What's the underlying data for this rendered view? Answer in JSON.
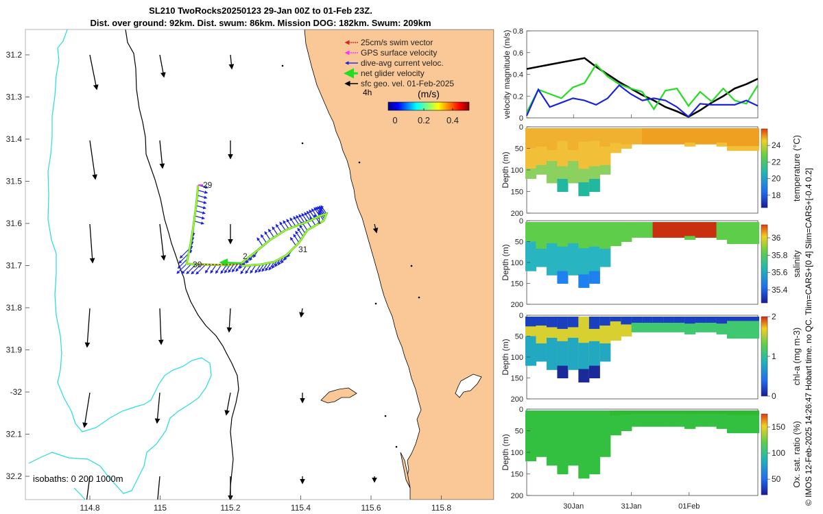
{
  "header": {
    "title_line1": "SL210 TwoRocks20250123 29-Jan 00Z to 01-Feb 23Z.",
    "title_line2": "Dist. over ground: 92km. Dist. swum: 86km. Mission DOG: 182km. Swum: 209km"
  },
  "map": {
    "lat_ticks": [
      "31.2",
      "31.3",
      "31.4",
      "31.5",
      "31.6",
      "31.7",
      "31.8",
      "31.9",
      "-32",
      "32.1",
      "32.2"
    ],
    "lon_ticks": [
      "114.8",
      "115",
      "115.2",
      "115.4",
      "115.6",
      "115.8"
    ],
    "legend": [
      {
        "label": "25cm/s swim vector",
        "color": "#dd2222"
      },
      {
        "label": "GPS surface velocity",
        "color": "#ff33ff"
      },
      {
        "label": "dive-avg current veloc.",
        "color": "#2233ee"
      },
      {
        "label": "net glider velocity",
        "color": "#22dd22"
      },
      {
        "label": "sfc geo. vel. 01-Feb-2025",
        "color": "#000000"
      }
    ],
    "legend_4h": "4h",
    "colorbar_title": "(m/s)",
    "colorbar_ticks": [
      "0",
      "0.2",
      "0.4"
    ],
    "day_labels": [
      "29",
      "30",
      "31",
      "1",
      "2"
    ],
    "isobaths_label": "isobaths: 0   200  1000m",
    "colors": {
      "land": "#fac896",
      "isobath200": "#000000",
      "isobath1000": "#22dddd"
    }
  },
  "chart_data": [
    {
      "type": "line",
      "title": "",
      "xlabel": "",
      "ylabel": "velocity magnitude (m/s)",
      "ylim": [
        0,
        0.8
      ],
      "yticks": [
        "0",
        "0.2",
        "0.4",
        "0.6",
        "0.8"
      ],
      "x_days": [
        0,
        0.2,
        0.4,
        0.6,
        0.8,
        1.0,
        1.2,
        1.4,
        1.6,
        1.8,
        2.0,
        2.2,
        2.4,
        2.6,
        2.8,
        3.0,
        3.2,
        3.4,
        3.6,
        3.8,
        4.0
      ],
      "series": [
        {
          "name": "sfc geo. vel.",
          "color": "#000000",
          "values": [
            0.45,
            0.47,
            0.49,
            0.51,
            0.53,
            0.55,
            0.47,
            0.4,
            0.33,
            0.27,
            0.21,
            0.16,
            0.1,
            0.06,
            0.01,
            0.07,
            0.14,
            0.2,
            0.27,
            0.31,
            0.36
          ]
        },
        {
          "name": "net glider velocity",
          "color": "#22dd22",
          "values": [
            0.05,
            0.26,
            0.22,
            0.18,
            0.28,
            0.32,
            0.49,
            0.38,
            0.31,
            0.27,
            0.24,
            0.08,
            0.25,
            0.27,
            0.11,
            0.24,
            0.15,
            0.27,
            0.16,
            0.13,
            0.3
          ]
        },
        {
          "name": "dive-avg current veloc.",
          "color": "#1a22e0",
          "values": [
            0.02,
            0.26,
            0.1,
            0.14,
            0.18,
            0.16,
            0.12,
            0.18,
            0.3,
            0.22,
            0.16,
            0.18,
            0.16,
            0.1,
            0.01,
            0.13,
            0.12,
            0.12,
            0.12,
            0.16,
            0.11
          ]
        }
      ]
    },
    {
      "type": "heatmap",
      "ylabel": "Depth (m)",
      "ylim": [
        0,
        200
      ],
      "yticks": [
        "0",
        "50",
        "100",
        "150",
        "200"
      ],
      "colorbar_label": "temperature (°C)",
      "colorbar_ticks": [
        "18",
        "20",
        "22",
        "24"
      ],
      "clim": [
        16.5,
        26
      ]
    },
    {
      "type": "heatmap",
      "ylabel": "Depth (m)",
      "ylim": [
        0,
        200
      ],
      "yticks": [
        "0",
        "50",
        "100",
        "150",
        "200"
      ],
      "colorbar_label": "salinity",
      "colorbar_ticks": [
        "35.4",
        "35.6",
        "35.8",
        "36"
      ],
      "clim": [
        35.25,
        36.15
      ]
    },
    {
      "type": "heatmap",
      "ylabel": "Depth (m)",
      "ylim": [
        0,
        200
      ],
      "yticks": [
        "0",
        "50",
        "100",
        "150",
        "200"
      ],
      "colorbar_label": "chl-a (mg m-3)",
      "colorbar_ticks": [
        "0",
        "1",
        "2"
      ],
      "clim": [
        0,
        2
      ]
    },
    {
      "type": "heatmap",
      "ylabel": "Depth (m)",
      "ylim": [
        0,
        200
      ],
      "yticks": [
        "0",
        "50",
        "100",
        "150",
        "200"
      ],
      "colorbar_label": "Ox. sat. ratio (%)",
      "colorbar_ticks": [
        "50",
        "100",
        "150"
      ],
      "clim": [
        20,
        175
      ]
    }
  ],
  "time_axis": {
    "ticks": [
      "30Jan",
      "31Jan",
      "01Feb"
    ]
  },
  "footer": {
    "credit": "© IMOS 12-Feb-2025 14:26:47 Hobart time. no QC. Tlim=CARS+[0 4] Slim=CARS+[-0.4 0.2]"
  }
}
